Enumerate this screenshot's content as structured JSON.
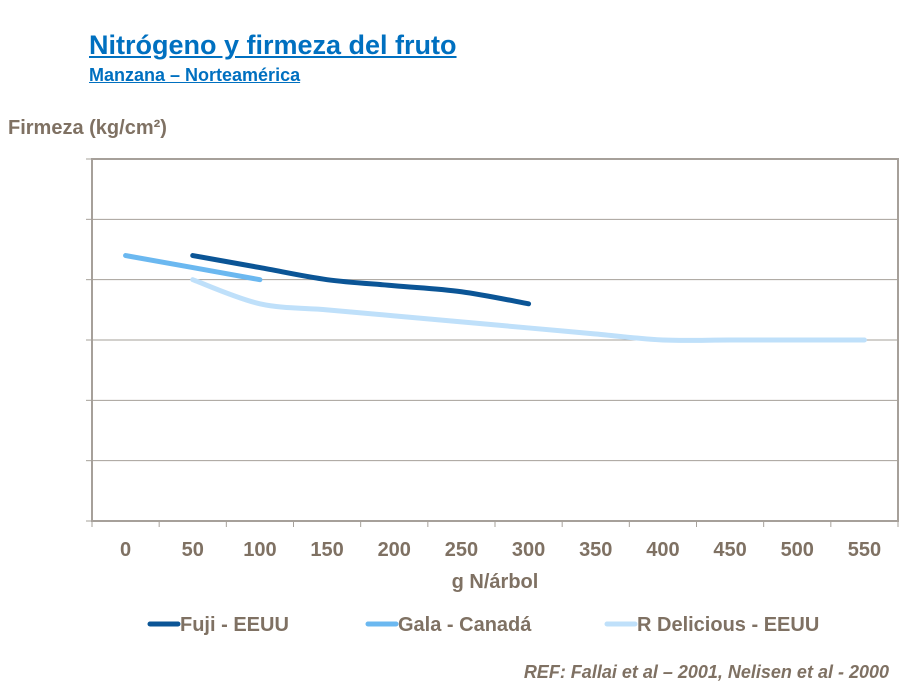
{
  "header": {
    "title": "Nitrógeno y firmeza del fruto",
    "subtitle": "Manzana – Norteamérica"
  },
  "reference": "REF: Fallai et al – 2001, Nelisen et al - 2000",
  "chart_data": {
    "type": "line",
    "title": "Nitrógeno y firmeza del fruto",
    "subtitle": "Manzana – Norteamérica",
    "ylabel": "Firmeza (kg/cm²)",
    "xlabel": "g N/árbol",
    "categories": [
      "0",
      "50",
      "100",
      "150",
      "200",
      "250",
      "300",
      "350",
      "400",
      "450",
      "500",
      "550"
    ],
    "ylim": [
      0,
      6
    ],
    "y_tick_labels_shown": false,
    "grid": true,
    "legend_position": "bottom",
    "series": [
      {
        "name": "Fuji - EEUU",
        "color": "#0b5596",
        "x": [
          50,
          100,
          150,
          200,
          250,
          300
        ],
        "values": [
          4.4,
          4.2,
          4.0,
          3.9,
          3.8,
          3.6
        ]
      },
      {
        "name": "Gala - Canadá",
        "color": "#6bb8f0",
        "x": [
          0,
          100
        ],
        "values": [
          4.4,
          4.0
        ]
      },
      {
        "name": "R Delicious - EEUU",
        "color": "#bfe0fa",
        "x": [
          50,
          100,
          150,
          200,
          250,
          300,
          350,
          400,
          450,
          500,
          550
        ],
        "values": [
          4.0,
          3.6,
          3.5,
          3.4,
          3.3,
          3.2,
          3.1,
          3.0,
          3.0,
          3.0,
          3.0
        ]
      }
    ]
  }
}
